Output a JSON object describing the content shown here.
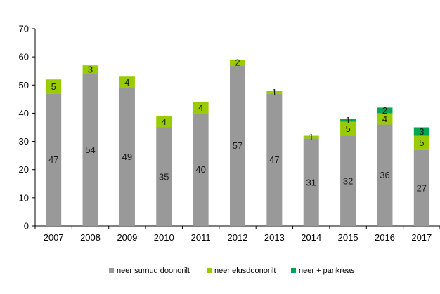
{
  "chart_data": {
    "type": "bar",
    "stacked": true,
    "categories": [
      "2007",
      "2008",
      "2009",
      "2010",
      "2011",
      "2012",
      "2013",
      "2014",
      "2015",
      "2016",
      "2017"
    ],
    "series": [
      {
        "name": "neer surnud doonorilt",
        "color": "#999999",
        "values": [
          47,
          54,
          49,
          35,
          40,
          57,
          47,
          31,
          32,
          36,
          27
        ]
      },
      {
        "name": "neer elusdoonorilt",
        "color": "#99cc00",
        "values": [
          5,
          3,
          4,
          4,
          4,
          2,
          1,
          1,
          5,
          4,
          5
        ]
      },
      {
        "name": "neer + pankreas",
        "color": "#00a651",
        "values": [
          0,
          0,
          0,
          0,
          0,
          0,
          0,
          0,
          1,
          2,
          3
        ]
      }
    ],
    "ylim": [
      0,
      70
    ],
    "yticks": [
      0,
      10,
      20,
      30,
      40,
      50,
      60,
      70
    ],
    "legend_position": "bottom",
    "grid": false,
    "title": "",
    "xlabel": "",
    "ylabel": ""
  }
}
